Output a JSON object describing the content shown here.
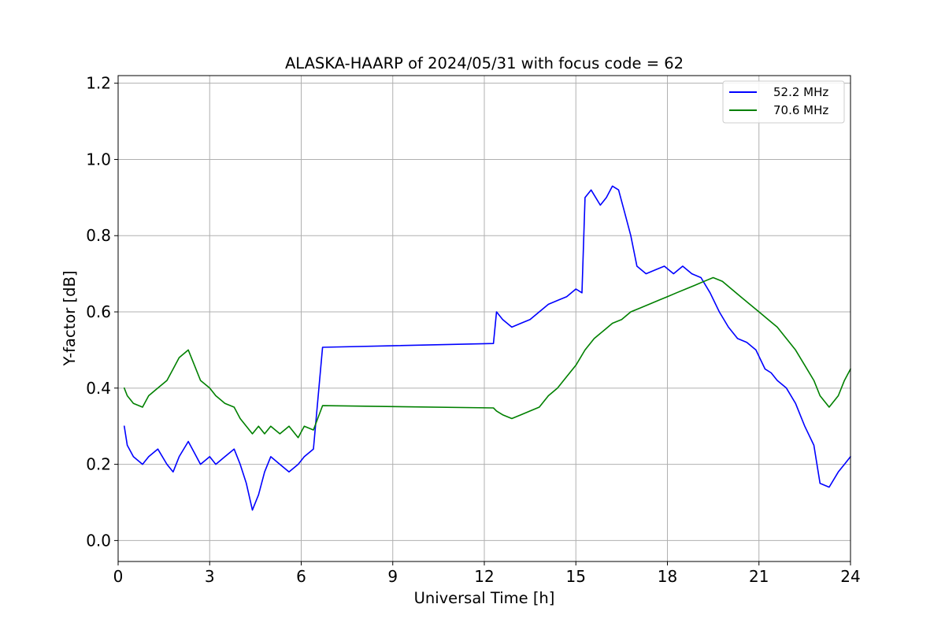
{
  "chart_data": {
    "type": "line",
    "title": "ALASKA-HAARP of 2024/05/31 with focus code = 62",
    "xlabel": "Universal Time [h]",
    "ylabel": "Y-factor [dB]",
    "xlim": [
      0,
      24
    ],
    "ylim": [
      -0.055,
      1.22
    ],
    "xticks": [
      0,
      3,
      6,
      9,
      12,
      15,
      18,
      21,
      24
    ],
    "xtick_labels": [
      "0",
      "3",
      "6",
      "9",
      "12",
      "15",
      "18",
      "21",
      "24"
    ],
    "yticks": [
      0.0,
      0.2,
      0.4,
      0.6,
      0.8,
      1.0,
      1.2
    ],
    "ytick_labels": [
      "0.0",
      "0.2",
      "0.4",
      "0.6",
      "0.8",
      "1.0",
      "1.2"
    ],
    "grid": true,
    "legend_position": "top-right",
    "series": [
      {
        "name": "52.2 MHz",
        "color": "#0000ff",
        "x": [
          0.2,
          0.3,
          0.5,
          0.8,
          1.0,
          1.3,
          1.6,
          1.8,
          2.0,
          2.3,
          2.5,
          2.7,
          3.0,
          3.2,
          3.5,
          3.8,
          4.0,
          4.2,
          4.4,
          4.6,
          4.8,
          5.0,
          5.3,
          5.6,
          5.9,
          6.1,
          6.4,
          6.7,
          12.3,
          12.4,
          12.6,
          12.9,
          13.2,
          13.5,
          13.8,
          14.1,
          14.4,
          14.7,
          15.0,
          15.2,
          15.3,
          15.5,
          15.8,
          16.0,
          16.2,
          16.4,
          16.6,
          16.8,
          17.0,
          17.3,
          17.6,
          17.9,
          18.2,
          18.5,
          18.8,
          19.1,
          19.4,
          19.7,
          20.0,
          20.3,
          20.6,
          20.9,
          21.2,
          21.4,
          21.6,
          21.9,
          22.2,
          22.5,
          22.8,
          23.0,
          23.3,
          23.6,
          23.8,
          24.0
        ],
        "y": [
          0.3,
          0.25,
          0.22,
          0.2,
          0.22,
          0.24,
          0.2,
          0.18,
          0.22,
          0.26,
          0.23,
          0.2,
          0.22,
          0.2,
          0.22,
          0.24,
          0.2,
          0.15,
          0.08,
          0.12,
          0.18,
          0.22,
          0.2,
          0.18,
          0.2,
          0.22,
          0.24,
          0.507,
          0.517,
          0.6,
          0.58,
          0.56,
          0.57,
          0.58,
          0.6,
          0.62,
          0.63,
          0.64,
          0.66,
          0.65,
          0.9,
          0.92,
          0.88,
          0.9,
          0.93,
          0.92,
          0.86,
          0.8,
          0.72,
          0.7,
          0.71,
          0.72,
          0.7,
          0.72,
          0.7,
          0.69,
          0.65,
          0.6,
          0.56,
          0.53,
          0.52,
          0.5,
          0.45,
          0.44,
          0.42,
          0.4,
          0.36,
          0.3,
          0.25,
          0.15,
          0.14,
          0.18,
          0.2,
          0.22
        ]
      },
      {
        "name": "70.6 MHz",
        "color": "#008000",
        "x": [
          0.2,
          0.3,
          0.5,
          0.8,
          1.0,
          1.3,
          1.6,
          1.8,
          2.0,
          2.3,
          2.5,
          2.7,
          3.0,
          3.2,
          3.5,
          3.8,
          4.0,
          4.2,
          4.4,
          4.6,
          4.8,
          5.0,
          5.3,
          5.6,
          5.9,
          6.1,
          6.4,
          6.7,
          12.3,
          12.4,
          12.6,
          12.9,
          13.2,
          13.5,
          13.8,
          14.1,
          14.4,
          14.7,
          15.0,
          15.3,
          15.6,
          15.9,
          16.2,
          16.5,
          16.8,
          17.1,
          17.4,
          17.7,
          18.0,
          18.3,
          18.6,
          18.9,
          19.2,
          19.5,
          19.8,
          20.1,
          20.4,
          20.7,
          21.0,
          21.3,
          21.6,
          21.9,
          22.2,
          22.5,
          22.8,
          23.0,
          23.3,
          23.6,
          23.8,
          24.0
        ],
        "y": [
          0.4,
          0.38,
          0.36,
          0.35,
          0.38,
          0.4,
          0.42,
          0.45,
          0.48,
          0.5,
          0.46,
          0.42,
          0.4,
          0.38,
          0.36,
          0.35,
          0.32,
          0.3,
          0.28,
          0.3,
          0.28,
          0.3,
          0.28,
          0.3,
          0.27,
          0.3,
          0.29,
          0.354,
          0.348,
          0.34,
          0.33,
          0.32,
          0.33,
          0.34,
          0.35,
          0.38,
          0.4,
          0.43,
          0.46,
          0.5,
          0.53,
          0.55,
          0.57,
          0.58,
          0.6,
          0.61,
          0.62,
          0.63,
          0.64,
          0.65,
          0.66,
          0.67,
          0.68,
          0.69,
          0.68,
          0.66,
          0.64,
          0.62,
          0.6,
          0.58,
          0.56,
          0.53,
          0.5,
          0.46,
          0.42,
          0.38,
          0.35,
          0.38,
          0.42,
          0.45
        ]
      }
    ]
  }
}
